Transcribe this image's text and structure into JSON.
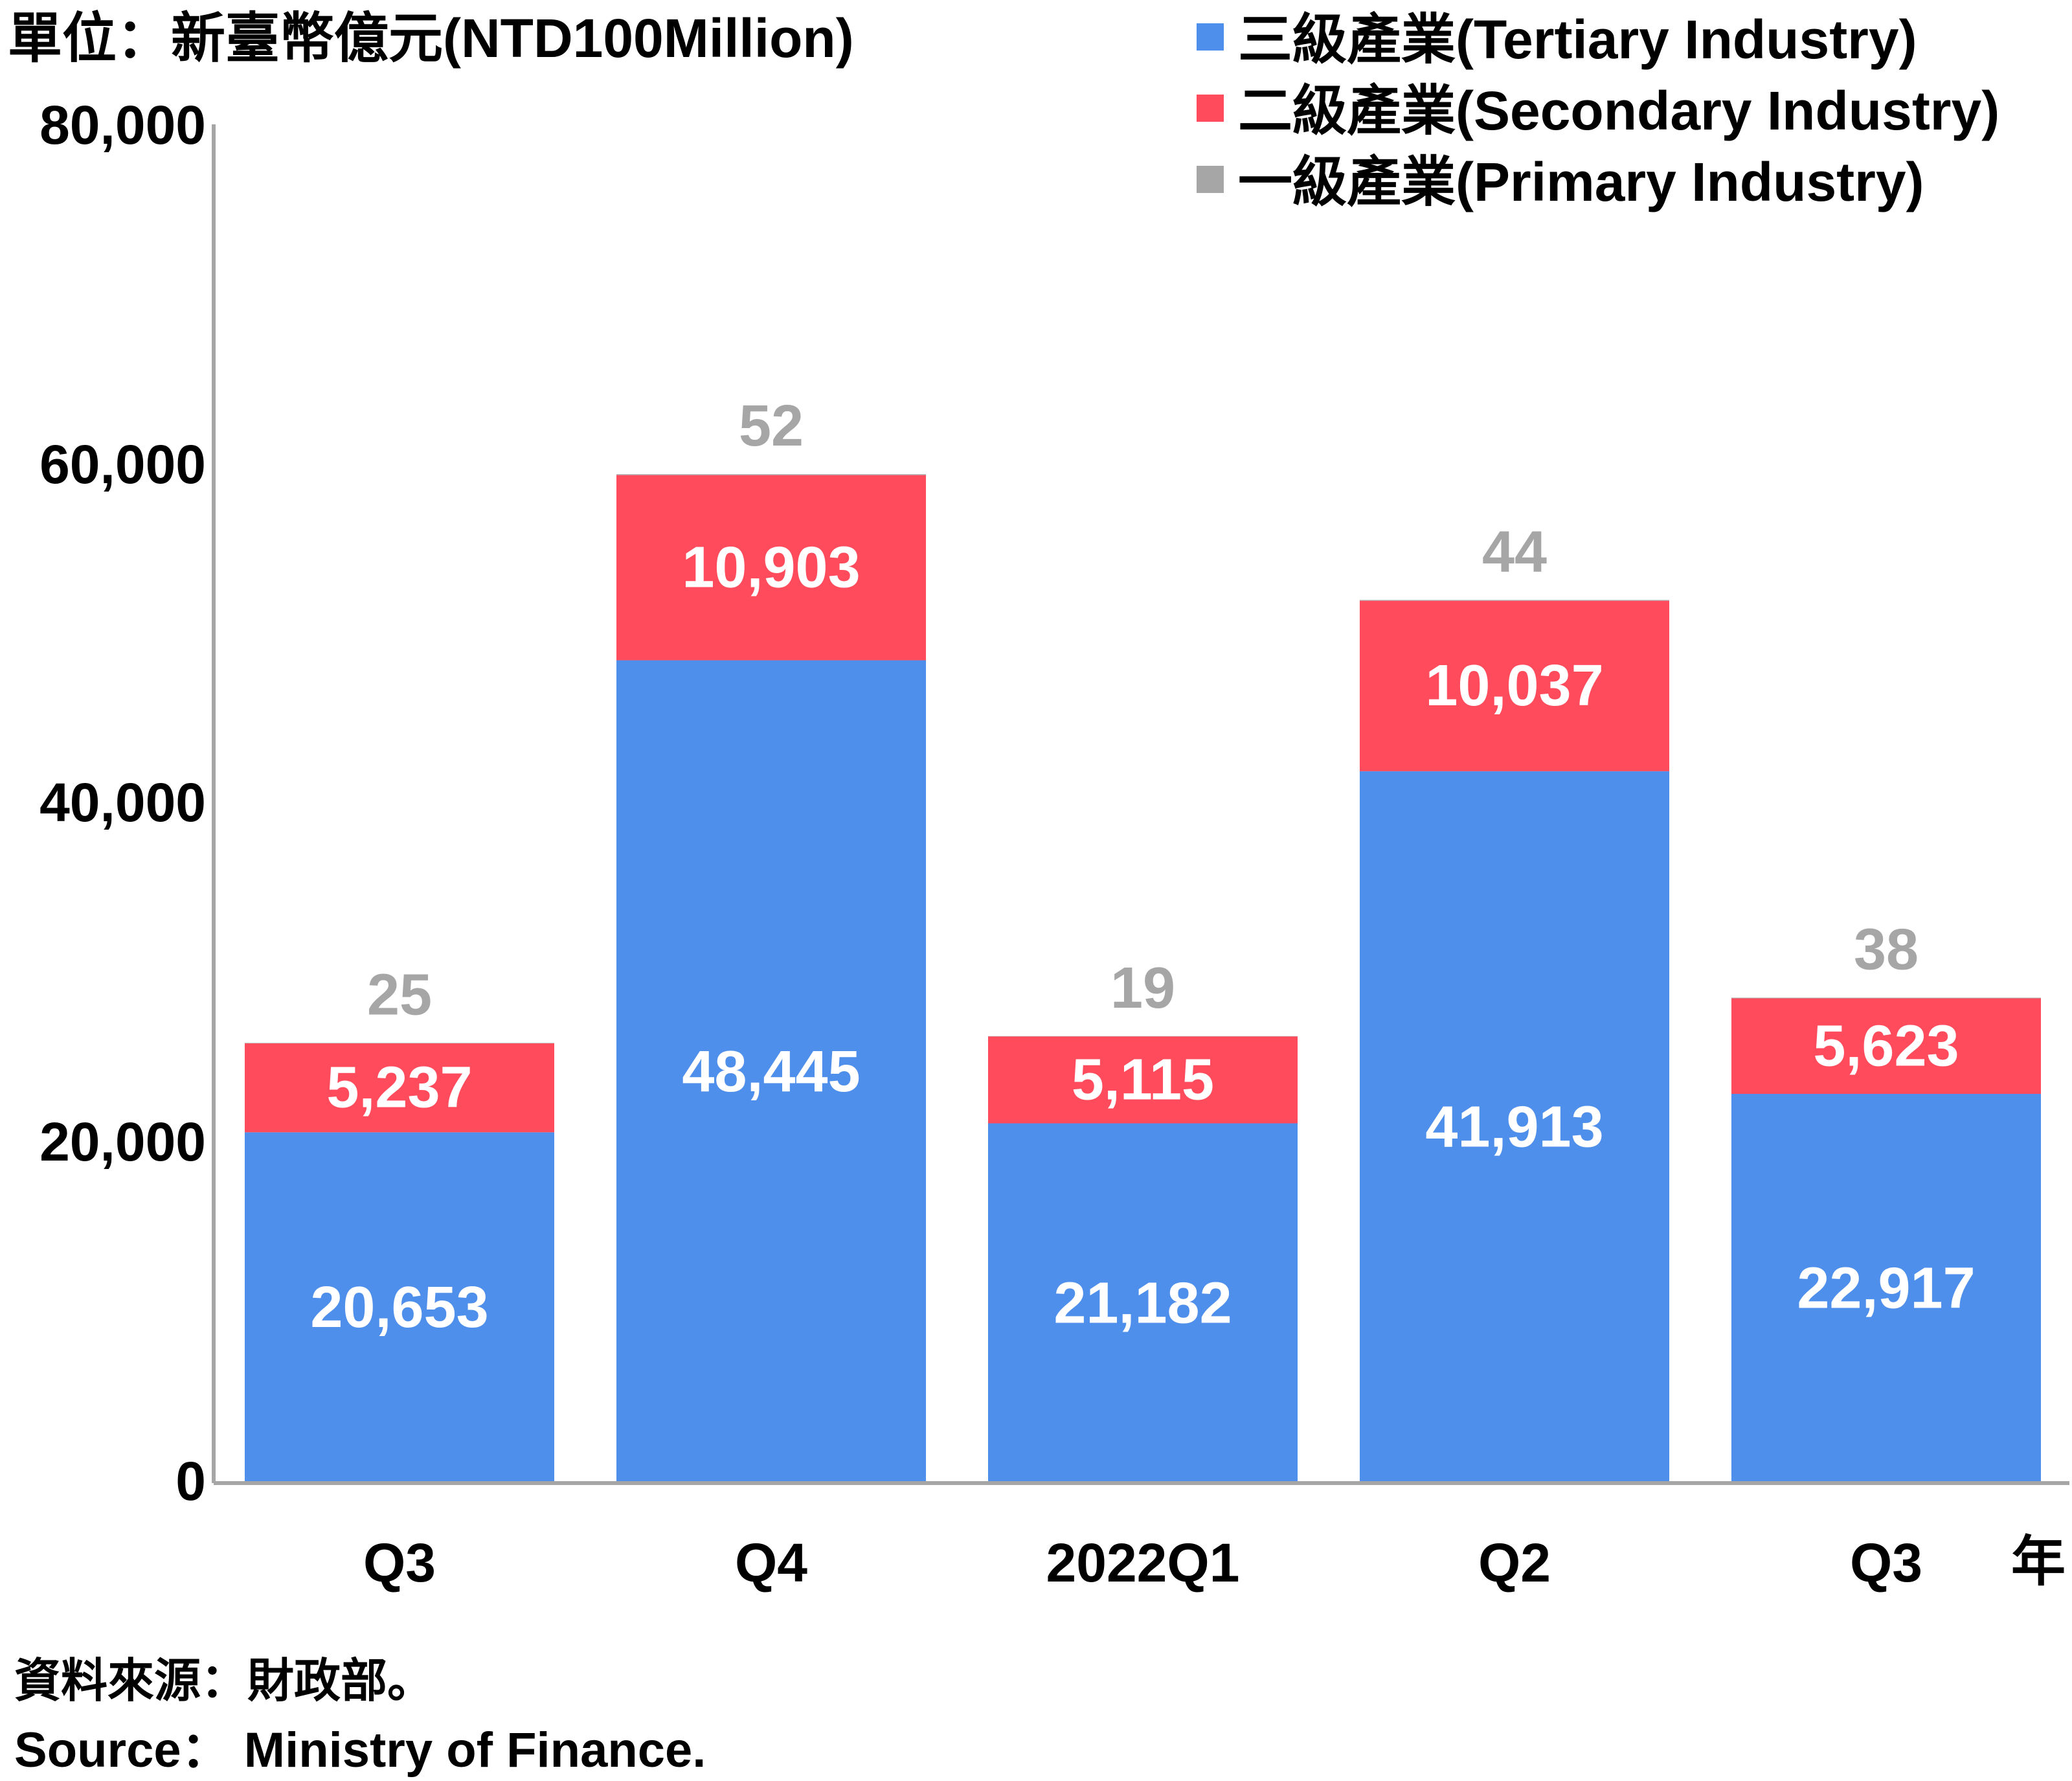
{
  "chart_data": {
    "type": "bar",
    "stacked": true,
    "unit_label": "單位：新臺幣億元(NTD100Million)",
    "x_unit_label": "年",
    "categories": [
      "Q3",
      "Q4",
      "2022Q1",
      "Q2",
      "Q3"
    ],
    "series": [
      {
        "name": "一級產業(Primary Industry)",
        "color": "#a6a6a6",
        "values": [
          25,
          52,
          19,
          44,
          38
        ]
      },
      {
        "name": "二級產業(Secondary Industry)",
        "color": "#ff4b5c",
        "values": [
          5237,
          10903,
          5115,
          10037,
          5623
        ]
      },
      {
        "name": "三級產業(Tertiary Industry)",
        "color": "#4f8fec",
        "values": [
          20653,
          48445,
          21182,
          41913,
          22917
        ]
      }
    ],
    "ylim": [
      0,
      80000
    ],
    "yticks": [
      "0",
      "20,000",
      "40,000",
      "60,000",
      "80,000"
    ],
    "legend_position": "top-right",
    "grid": false
  },
  "source": {
    "zh": "資料來源：財政部。",
    "en": "Source： Ministry of Finance."
  }
}
